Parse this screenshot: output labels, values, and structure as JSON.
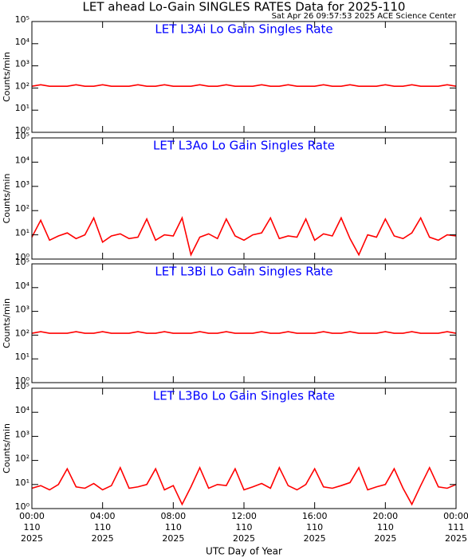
{
  "title": "LET ahead Lo-Gain SINGLES RATES Data for 2025-110",
  "timestamp": "Sat Apr 26 09:57:53 2025 ACE Science Center",
  "x_label": "UTC Day of Year",
  "chart_data": [
    {
      "type": "line",
      "title": "LET L3Ai Lo Gain Singles Rate",
      "y_label": "Counts/min",
      "log_scale": true,
      "xlim": [
        0,
        24
      ],
      "xticks": [
        0,
        4,
        8,
        12,
        16,
        20,
        24
      ],
      "ylim": [
        1,
        100000
      ],
      "yticks": [
        {
          "value": 1,
          "label": "10⁰"
        },
        {
          "value": 10,
          "label": "10¹"
        },
        {
          "value": 100,
          "label": "10²"
        },
        {
          "value": 1000,
          "label": "10³"
        },
        {
          "value": 10000,
          "label": "10⁴"
        },
        {
          "value": 100000,
          "label": "10⁵"
        }
      ],
      "x": [
        0,
        0.5,
        1,
        1.5,
        2,
        2.5,
        3,
        3.5,
        4,
        4.5,
        5,
        5.5,
        6,
        6.5,
        7,
        7.5,
        8,
        8.5,
        9,
        9.5,
        10,
        10.5,
        11,
        11.5,
        12,
        12.5,
        13,
        13.5,
        14,
        14.5,
        15,
        15.5,
        16,
        16.5,
        17,
        17.5,
        18,
        18.5,
        19,
        19.5,
        20,
        20.5,
        21,
        21.5,
        22,
        22.5,
        23,
        23.5,
        24
      ],
      "series": [
        {
          "color": "#ff0000",
          "values": [
            120,
            140,
            120,
            120,
            120,
            140,
            120,
            120,
            140,
            120,
            120,
            120,
            140,
            120,
            120,
            140,
            120,
            120,
            120,
            140,
            120,
            120,
            140,
            120,
            120,
            120,
            140,
            120,
            120,
            140,
            120,
            120,
            120,
            140,
            120,
            120,
            140,
            120,
            120,
            120,
            140,
            120,
            120,
            140,
            120,
            120,
            120,
            140,
            120
          ]
        }
      ]
    },
    {
      "type": "line",
      "title": "LET L3Ao Lo Gain Singles Rate",
      "y_label": "Counts/min",
      "log_scale": true,
      "xlim": [
        0,
        24
      ],
      "xticks": [
        0,
        4,
        8,
        12,
        16,
        20,
        24
      ],
      "ylim": [
        1,
        100000
      ],
      "yticks": [
        {
          "value": 1,
          "label": "10⁰"
        },
        {
          "value": 10,
          "label": "10¹"
        },
        {
          "value": 100,
          "label": "10²"
        },
        {
          "value": 1000,
          "label": "10³"
        },
        {
          "value": 10000,
          "label": "10⁴"
        },
        {
          "value": 100000,
          "label": "10⁵"
        }
      ],
      "x": [
        0,
        0.5,
        1,
        1.5,
        2,
        2.5,
        3,
        3.5,
        4,
        4.5,
        5,
        5.5,
        6,
        6.5,
        7,
        7.5,
        8,
        8.5,
        9,
        9.5,
        10,
        10.5,
        11,
        11.5,
        12,
        12.5,
        13,
        13.5,
        14,
        14.5,
        15,
        15.5,
        16,
        16.5,
        17,
        17.5,
        18,
        18.5,
        19,
        19.5,
        20,
        20.5,
        21,
        21.5,
        22,
        22.5,
        23,
        23.5,
        24
      ],
      "series": [
        {
          "color": "#ff0000",
          "values": [
            8,
            40,
            6,
            9,
            12,
            7,
            10,
            50,
            5,
            9,
            11,
            7,
            8,
            45,
            6,
            10,
            9,
            50,
            1.5,
            8,
            11,
            7,
            45,
            9,
            6,
            10,
            12,
            50,
            7,
            9,
            8,
            45,
            6,
            11,
            9,
            50,
            7,
            1.5,
            10,
            8,
            45,
            9,
            7,
            12,
            50,
            8,
            6,
            10,
            9
          ]
        }
      ]
    },
    {
      "type": "line",
      "title": "LET L3Bi Lo Gain Singles Rate",
      "y_label": "Counts/min",
      "log_scale": true,
      "xlim": [
        0,
        24
      ],
      "xticks": [
        0,
        4,
        8,
        12,
        16,
        20,
        24
      ],
      "ylim": [
        1,
        100000
      ],
      "yticks": [
        {
          "value": 1,
          "label": "10⁰"
        },
        {
          "value": 10,
          "label": "10¹"
        },
        {
          "value": 100,
          "label": "10²"
        },
        {
          "value": 1000,
          "label": "10³"
        },
        {
          "value": 10000,
          "label": "10⁴"
        },
        {
          "value": 100000,
          "label": "10⁵"
        }
      ],
      "x": [
        0,
        0.5,
        1,
        1.5,
        2,
        2.5,
        3,
        3.5,
        4,
        4.5,
        5,
        5.5,
        6,
        6.5,
        7,
        7.5,
        8,
        8.5,
        9,
        9.5,
        10,
        10.5,
        11,
        11.5,
        12,
        12.5,
        13,
        13.5,
        14,
        14.5,
        15,
        15.5,
        16,
        16.5,
        17,
        17.5,
        18,
        18.5,
        19,
        19.5,
        20,
        20.5,
        21,
        21.5,
        22,
        22.5,
        23,
        23.5,
        24
      ],
      "series": [
        {
          "color": "#ff0000",
          "values": [
            120,
            140,
            120,
            120,
            120,
            140,
            120,
            120,
            140,
            120,
            120,
            120,
            140,
            120,
            120,
            140,
            120,
            120,
            120,
            140,
            120,
            120,
            140,
            120,
            120,
            120,
            140,
            120,
            120,
            140,
            120,
            120,
            120,
            140,
            120,
            120,
            140,
            120,
            120,
            120,
            140,
            120,
            120,
            140,
            120,
            120,
            120,
            140,
            120
          ]
        }
      ]
    },
    {
      "type": "line",
      "title": "LET L3Bo Lo Gain Singles Rate",
      "y_label": "Counts/min",
      "log_scale": true,
      "xlim": [
        0,
        24
      ],
      "xticks": [
        {
          "value": 0,
          "label": "00:00"
        },
        {
          "value": 4,
          "label": "04:00"
        },
        {
          "value": 8,
          "label": "08:00"
        },
        {
          "value": 12,
          "label": "12:00"
        },
        {
          "value": 16,
          "label": "16:00"
        },
        {
          "value": 20,
          "label": "20:00"
        },
        {
          "value": 24,
          "label": "00:00"
        }
      ],
      "xtick_days": [
        "110",
        "110",
        "110",
        "110",
        "110",
        "110",
        "111"
      ],
      "xtick_years": [
        "2025",
        "2025",
        "2025",
        "2025",
        "2025",
        "2025",
        "2025"
      ],
      "ylim": [
        1,
        100000
      ],
      "yticks": [
        {
          "value": 1,
          "label": "10⁰"
        },
        {
          "value": 10,
          "label": "10¹"
        },
        {
          "value": 100,
          "label": "10²"
        },
        {
          "value": 1000,
          "label": "10³"
        },
        {
          "value": 10000,
          "label": "10⁴"
        },
        {
          "value": 100000,
          "label": "10⁵"
        }
      ],
      "x": [
        0,
        0.5,
        1,
        1.5,
        2,
        2.5,
        3,
        3.5,
        4,
        4.5,
        5,
        5.5,
        6,
        6.5,
        7,
        7.5,
        8,
        8.5,
        9,
        9.5,
        10,
        10.5,
        11,
        11.5,
        12,
        12.5,
        13,
        13.5,
        14,
        14.5,
        15,
        15.5,
        16,
        16.5,
        17,
        17.5,
        18,
        18.5,
        19,
        19.5,
        20,
        20.5,
        21,
        21.5,
        22,
        22.5,
        23,
        23.5,
        24
      ],
      "series": [
        {
          "color": "#ff0000",
          "values": [
            7,
            9,
            6,
            10,
            45,
            8,
            7,
            11,
            6,
            9,
            50,
            7,
            8,
            10,
            45,
            6,
            9,
            1.5,
            8,
            50,
            7,
            10,
            9,
            45,
            6,
            8,
            11,
            7,
            50,
            9,
            6,
            10,
            45,
            8,
            7,
            9,
            12,
            50,
            6,
            8,
            10,
            45,
            7,
            1.5,
            9,
            50,
            8,
            7,
            10
          ]
        }
      ]
    }
  ]
}
